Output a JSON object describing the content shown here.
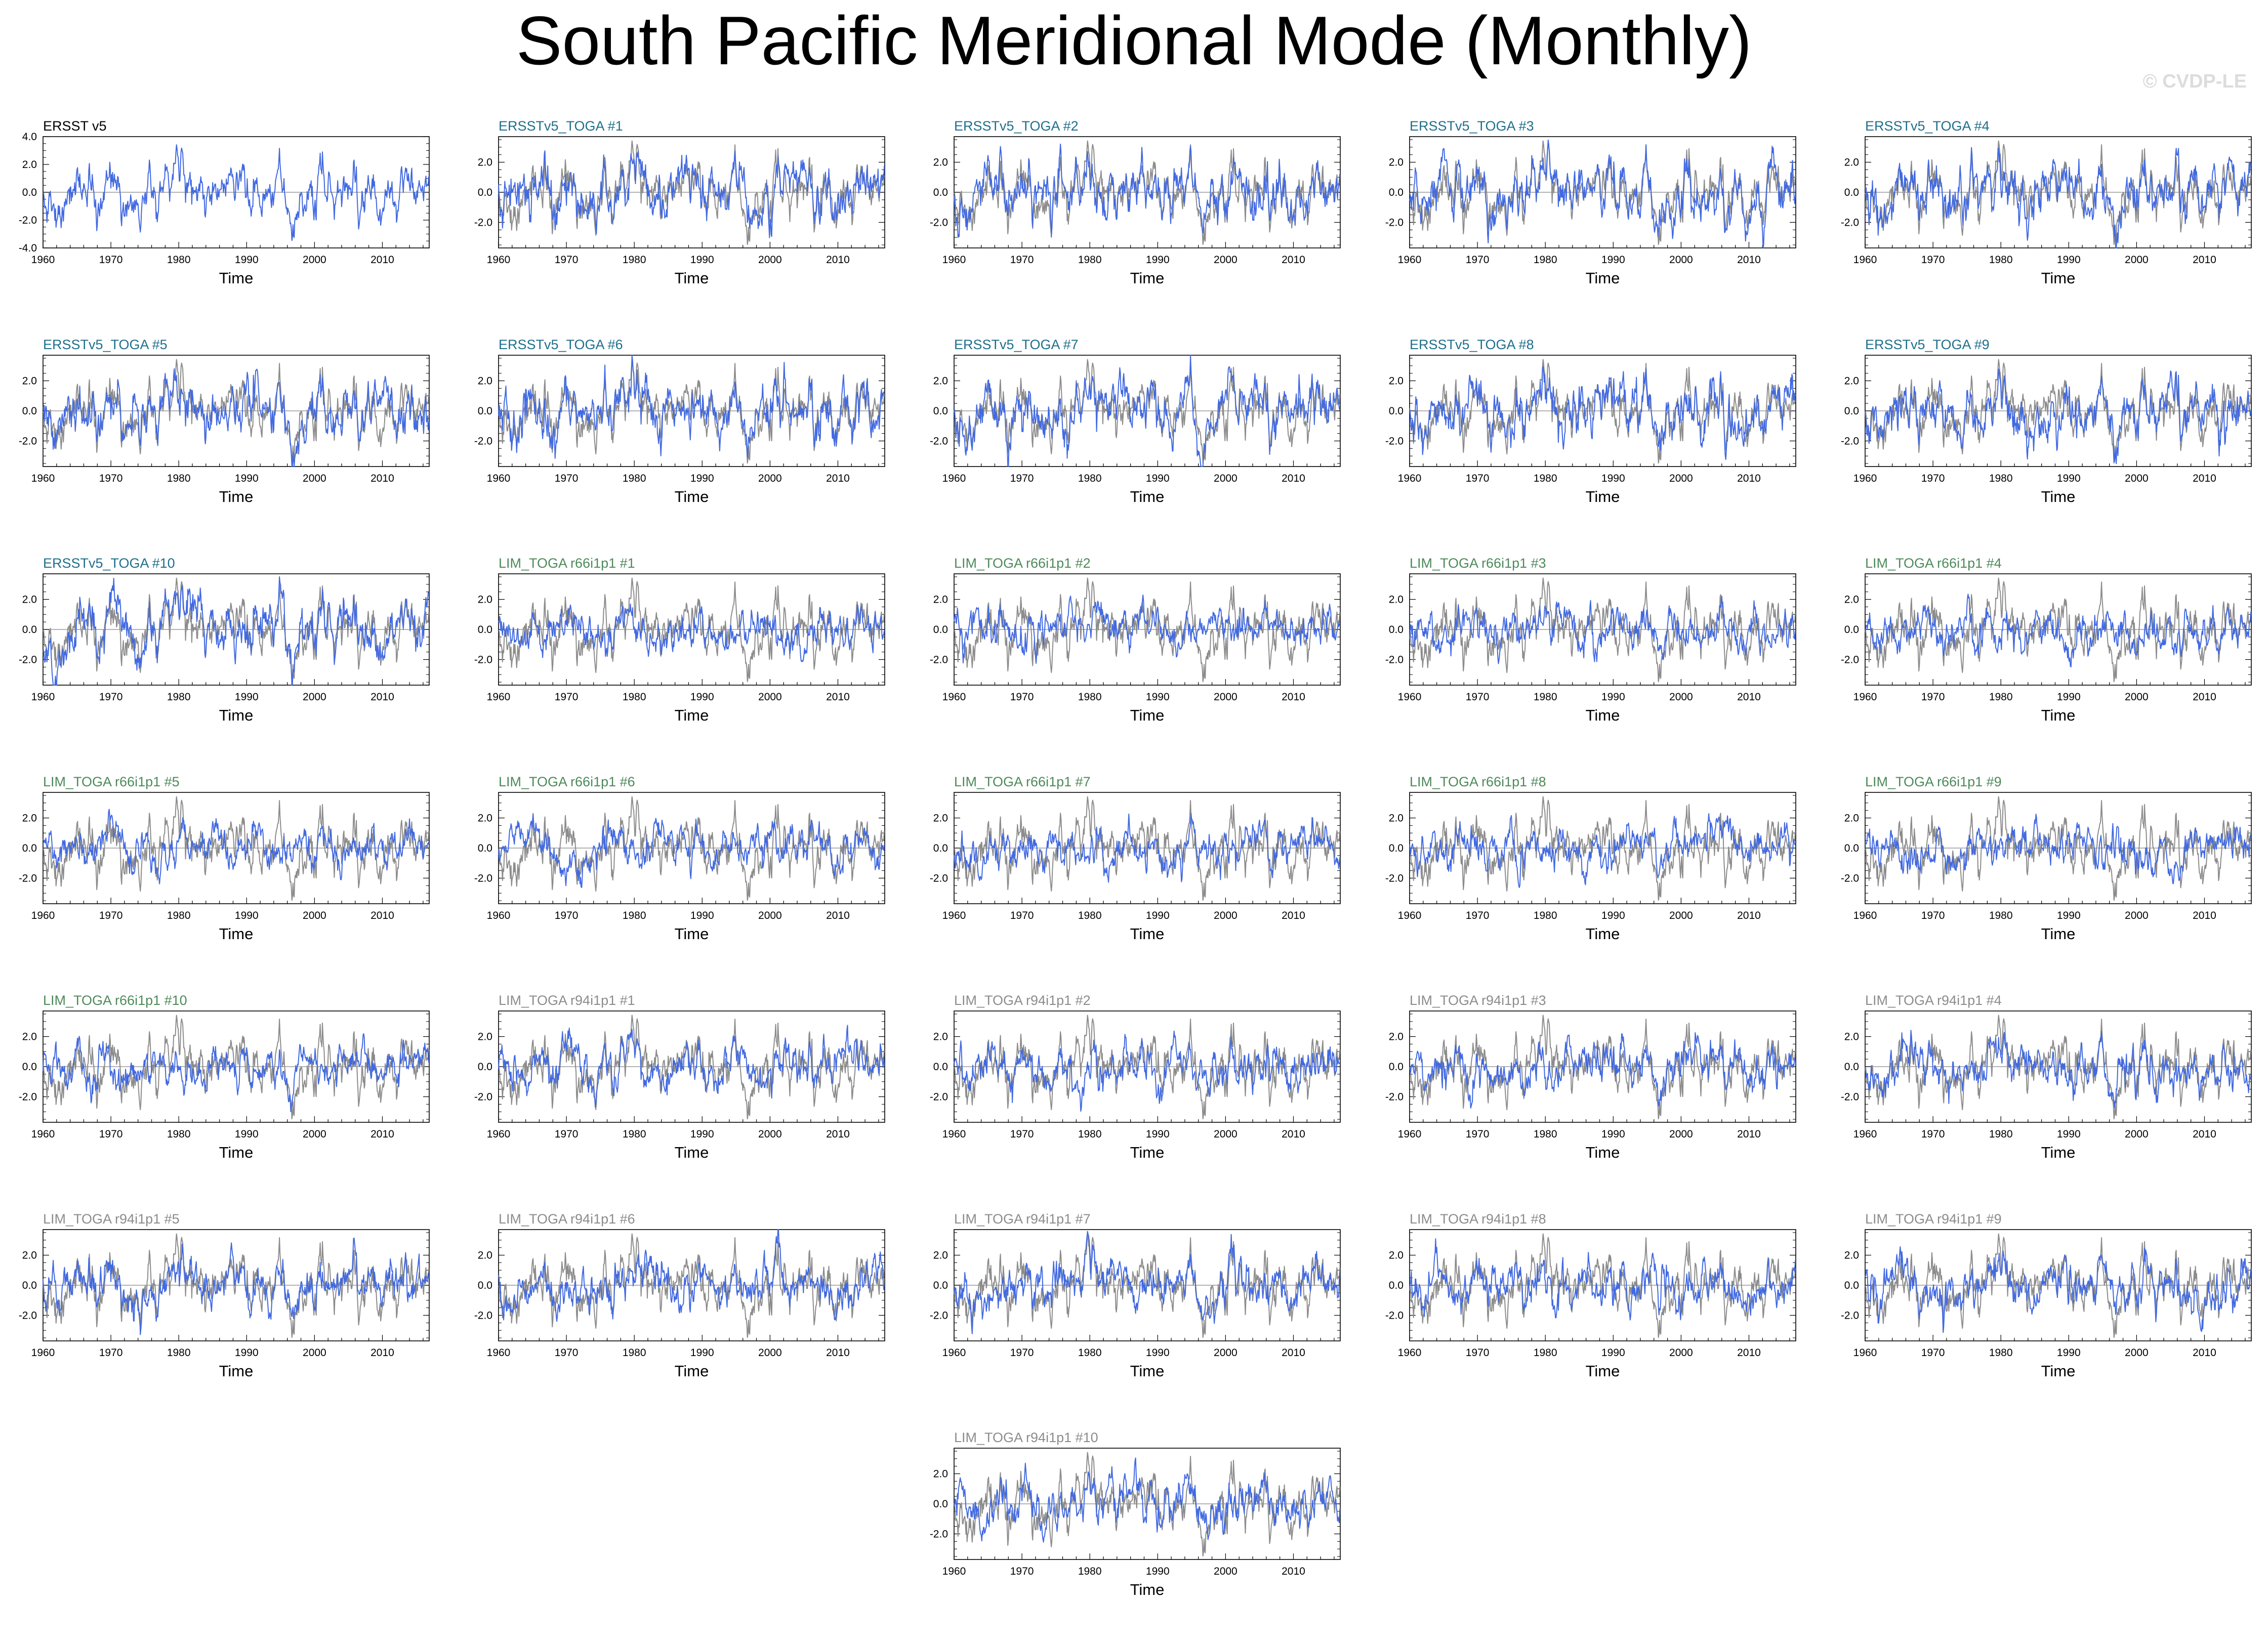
{
  "title": "South Pacific Meridional Mode (Monthly)",
  "watermark": "© CVDP-LE",
  "colors": {
    "observed": "#8c8c8c",
    "simulated": "#4169e1",
    "title_obs": "#000000",
    "title_ersst": "#1f6f8b",
    "title_r66": "#4d8a5a",
    "title_r94": "#8c8c8c",
    "zero_line": "#9a9a9a"
  },
  "chart_data": {
    "type": "line",
    "xlabel": "Time",
    "x_ticks": [
      1960,
      1970,
      1980,
      1990,
      2000,
      2010
    ],
    "xlim": [
      1960,
      2016.9
    ],
    "ylim_first": [
      -4,
      4
    ],
    "y_ticks_first": [
      "4.0",
      "2.0",
      "0.0",
      "-2.0",
      "-4.0"
    ],
    "ylim": [
      -3.7,
      3.7
    ],
    "y_ticks": [
      "2.0",
      "0.0",
      "-2.0"
    ],
    "series_style": "monthly time series, simulated (blue) overlaid on observed ERSST v5 (gray)",
    "panels": [
      {
        "title": "ERSST v5",
        "group": "obs",
        "seed": 1
      },
      {
        "title": "ERSSTv5_TOGA #1",
        "group": "ersst",
        "seed": 2
      },
      {
        "title": "ERSSTv5_TOGA #2",
        "group": "ersst",
        "seed": 3
      },
      {
        "title": "ERSSTv5_TOGA #3",
        "group": "ersst",
        "seed": 4
      },
      {
        "title": "ERSSTv5_TOGA #4",
        "group": "ersst",
        "seed": 5
      },
      {
        "title": "ERSSTv5_TOGA #5",
        "group": "ersst",
        "seed": 6
      },
      {
        "title": "ERSSTv5_TOGA #6",
        "group": "ersst",
        "seed": 7
      },
      {
        "title": "ERSSTv5_TOGA #7",
        "group": "ersst",
        "seed": 8
      },
      {
        "title": "ERSSTv5_TOGA #8",
        "group": "ersst",
        "seed": 9
      },
      {
        "title": "ERSSTv5_TOGA #9",
        "group": "ersst",
        "seed": 10
      },
      {
        "title": "ERSSTv5_TOGA #10",
        "group": "ersst",
        "seed": 11
      },
      {
        "title": "LIM_TOGA r66i1p1 #1",
        "group": "r66",
        "seed": 12
      },
      {
        "title": "LIM_TOGA r66i1p1 #2",
        "group": "r66",
        "seed": 13
      },
      {
        "title": "LIM_TOGA r66i1p1 #3",
        "group": "r66",
        "seed": 14
      },
      {
        "title": "LIM_TOGA r66i1p1 #4",
        "group": "r66",
        "seed": 15
      },
      {
        "title": "LIM_TOGA r66i1p1 #5",
        "group": "r66",
        "seed": 16
      },
      {
        "title": "LIM_TOGA r66i1p1 #6",
        "group": "r66",
        "seed": 17
      },
      {
        "title": "LIM_TOGA r66i1p1 #7",
        "group": "r66",
        "seed": 18
      },
      {
        "title": "LIM_TOGA r66i1p1 #8",
        "group": "r66",
        "seed": 19
      },
      {
        "title": "LIM_TOGA r66i1p1 #9",
        "group": "r66",
        "seed": 20
      },
      {
        "title": "LIM_TOGA r66i1p1 #10",
        "group": "r66",
        "seed": 21
      },
      {
        "title": "LIM_TOGA r94i1p1 #1",
        "group": "r94",
        "seed": 22
      },
      {
        "title": "LIM_TOGA r94i1p1 #2",
        "group": "r94",
        "seed": 23
      },
      {
        "title": "LIM_TOGA r94i1p1 #3",
        "group": "r94",
        "seed": 24
      },
      {
        "title": "LIM_TOGA r94i1p1 #4",
        "group": "r94",
        "seed": 25
      },
      {
        "title": "LIM_TOGA r94i1p1 #5",
        "group": "r94",
        "seed": 26
      },
      {
        "title": "LIM_TOGA r94i1p1 #6",
        "group": "r94",
        "seed": 27
      },
      {
        "title": "LIM_TOGA r94i1p1 #7",
        "group": "r94",
        "seed": 28
      },
      {
        "title": "LIM_TOGA r94i1p1 #8",
        "group": "r94",
        "seed": 29
      },
      {
        "title": "LIM_TOGA r94i1p1 #9",
        "group": "r94",
        "seed": 30
      },
      {
        "title": "LIM_TOGA r94i1p1 #10",
        "group": "r94",
        "seed": 31
      }
    ]
  }
}
